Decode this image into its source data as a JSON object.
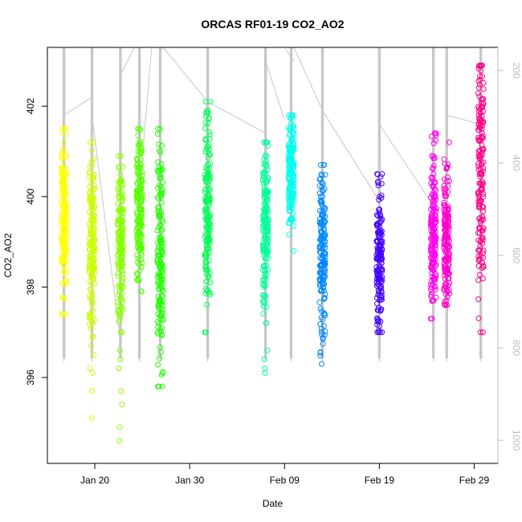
{
  "chart_data": {
    "type": "scatter",
    "title": "ORCAS RF01-19 CO2_AO2",
    "xlabel": "Date",
    "ylabel": "CO2_AO2",
    "x_ticks": [
      {
        "day": 19,
        "label": "Jan 20"
      },
      {
        "day": 29,
        "label": "Jan 30"
      },
      {
        "day": 39,
        "label": "Feb 09"
      },
      {
        "day": 49,
        "label": "Feb 19"
      },
      {
        "day": 59,
        "label": "Feb 29"
      }
    ],
    "xlim": [
      14.0,
      61.5
    ],
    "ylim": [
      394.1,
      403.3
    ],
    "y_ticks": [
      396,
      398,
      400,
      402
    ],
    "y2_ticks": [
      200,
      400,
      600,
      800,
      1000
    ],
    "y2lim": [
      1050,
      150
    ],
    "grid": false,
    "legend": "none",
    "track_color": "#c8c8c8",
    "flights": [
      {
        "id": "RF01",
        "day": 15.75,
        "color": "#ffff00",
        "y_low": 397.4,
        "y_high": 401.5,
        "y_mid": 399.6,
        "outliers": []
      },
      {
        "id": "RF02",
        "day": 18.7,
        "color": "#ccff00",
        "y_low": 396.9,
        "y_high": 401.2,
        "y_mid": 399.0,
        "outliers": [
          395.1,
          395.7,
          396.1,
          396.2,
          396.5,
          396.7
        ]
      },
      {
        "id": "RF03",
        "day": 21.7,
        "color": "#88ff00",
        "y_low": 397.0,
        "y_high": 400.9,
        "y_mid": 399.0,
        "outliers": [
          394.6,
          394.9,
          395.4,
          395.7,
          396.2,
          396.4,
          396.6
        ]
      },
      {
        "id": "RF04",
        "day": 23.7,
        "color": "#55ff00",
        "y_low": 397.9,
        "y_high": 401.5,
        "y_mid": 399.7,
        "outliers": []
      },
      {
        "id": "RF05",
        "day": 25.9,
        "color": "#22ff00",
        "y_low": 395.8,
        "y_high": 401.5,
        "y_mid": 398.6,
        "outliers": []
      },
      {
        "id": "RF06",
        "day": 30.9,
        "color": "#00ff55",
        "y_low": 397.0,
        "y_high": 402.1,
        "y_mid": 399.9,
        "outliers": []
      },
      {
        "id": "RF07",
        "day": 37.0,
        "color": "#00ff99",
        "y_low": 397.2,
        "y_high": 401.2,
        "y_mid": 399.3,
        "outliers": [
          396.1,
          396.2,
          396.4,
          396.6
        ]
      },
      {
        "id": "RF08",
        "day": 39.7,
        "color": "#00ffee",
        "y_low": 398.8,
        "y_high": 401.8,
        "y_mid": 400.6,
        "outliers": []
      },
      {
        "id": "RF09",
        "day": 43.0,
        "color": "#0088ff",
        "y_low": 396.3,
        "y_high": 400.7,
        "y_mid": 398.7,
        "outliers": []
      },
      {
        "id": "RF10",
        "day": 49.0,
        "color": "#4400ff",
        "y_low": 397.0,
        "y_high": 400.5,
        "y_mid": 398.6,
        "outliers": []
      },
      {
        "id": "RF11",
        "day": 54.7,
        "color": "#ff00ee",
        "y_low": 397.3,
        "y_high": 401.4,
        "y_mid": 399.3,
        "outliers": []
      },
      {
        "id": "RF12",
        "day": 56.1,
        "color": "#ff00cc",
        "y_low": 397.6,
        "y_high": 401.2,
        "y_mid": 399.1,
        "outliers": []
      },
      {
        "id": "RF13",
        "day": 59.7,
        "color": "#ff0088",
        "y_low": 397.0,
        "y_high": 402.9,
        "y_mid": 400.6,
        "outliers": []
      }
    ],
    "track_lines": [
      {
        "x": [
          15.75,
          18.7
        ],
        "y": [
          401.8,
          402.2
        ]
      },
      {
        "x": [
          18.7,
          21.7
        ],
        "y": [
          401.8,
          396.8
        ]
      },
      {
        "x": [
          21.7,
          23.2
        ],
        "y": [
          402.7,
          403.3
        ]
      },
      {
        "x": [
          23.7,
          25.0
        ],
        "y": [
          400.1,
          403.3
        ]
      },
      {
        "x": [
          26.2,
          30.9
        ],
        "y": [
          403.3,
          402.1
        ]
      },
      {
        "x": [
          30.9,
          37.0
        ],
        "y": [
          402.1,
          401.4
        ]
      },
      {
        "x": [
          37.0,
          39.0
        ],
        "y": [
          403.0,
          401.7
        ]
      },
      {
        "x": [
          39.0,
          40.0
        ],
        "y": [
          403.3,
          403.0
        ]
      },
      {
        "x": [
          40.0,
          43.0
        ],
        "y": [
          403.3,
          401.9
        ]
      },
      {
        "x": [
          43.0,
          49.0
        ],
        "y": [
          401.9,
          399.9
        ]
      },
      {
        "x": [
          49.0,
          54.7
        ],
        "y": [
          401.6,
          399.8
        ]
      },
      {
        "x": [
          56.1,
          59.7
        ],
        "y": [
          401.8,
          401.6
        ]
      }
    ]
  }
}
